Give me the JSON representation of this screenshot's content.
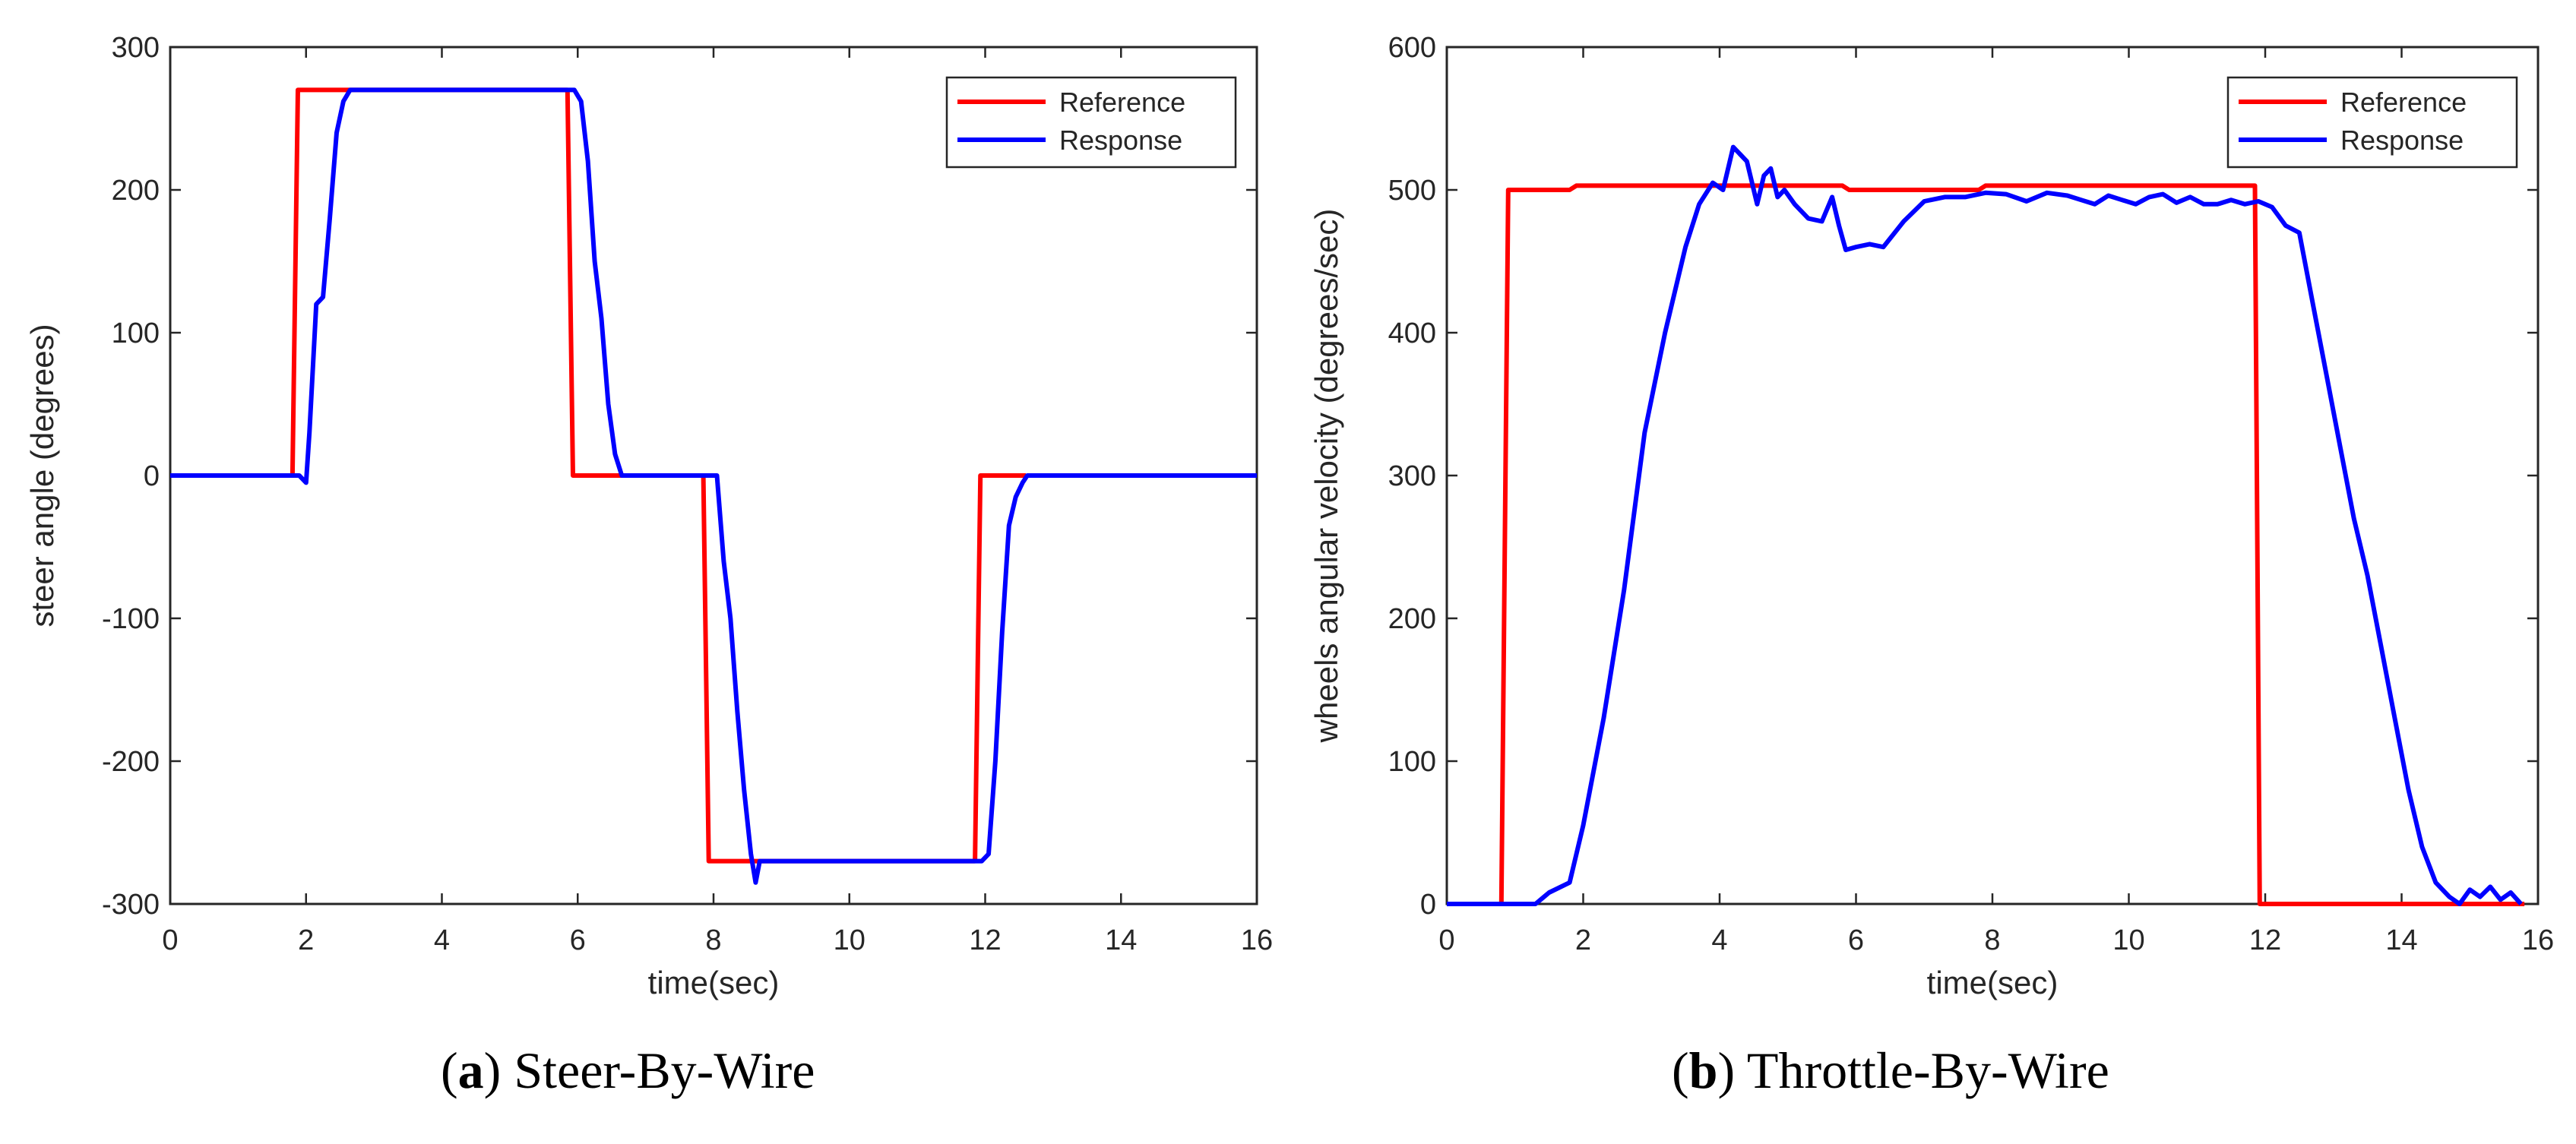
{
  "chart_data": [
    {
      "id": "a",
      "type": "line",
      "title": "",
      "xlabel": "time(sec)",
      "ylabel": "steer angle (degrees)",
      "xlim": [
        0,
        16
      ],
      "ylim": [
        -300,
        300
      ],
      "xticks": [
        0,
        2,
        4,
        6,
        8,
        10,
        12,
        14,
        16
      ],
      "yticks": [
        -300,
        -200,
        -100,
        0,
        100,
        200,
        300
      ],
      "legend_position": "top-right",
      "grid": false,
      "caption_letter": "a",
      "caption_text": "Steer-By-Wire",
      "series": [
        {
          "name": "Reference",
          "color": "#ff0000",
          "x": [
            0,
            1.8,
            1.88,
            5.85,
            5.93,
            7.85,
            7.93,
            11.85,
            11.93,
            12.6
          ],
          "y": [
            0,
            0,
            270,
            270,
            0,
            0,
            -270,
            -270,
            0,
            0
          ]
        },
        {
          "name": "Response",
          "color": "#0000ff",
          "x": [
            0,
            1.9,
            2.0,
            2.05,
            2.15,
            2.25,
            2.35,
            2.45,
            2.55,
            2.65,
            2.75,
            5.95,
            6.05,
            6.15,
            6.25,
            6.35,
            6.45,
            6.55,
            6.65,
            7.95,
            8.05,
            8.15,
            8.25,
            8.35,
            8.45,
            8.55,
            8.62,
            8.68,
            11.85,
            11.95,
            12.05,
            12.15,
            12.25,
            12.35,
            12.45,
            12.55,
            12.62,
            16
          ],
          "y": [
            0,
            0,
            -5,
            30,
            120,
            125,
            180,
            240,
            262,
            270,
            270,
            270,
            262,
            220,
            150,
            110,
            50,
            15,
            0,
            0,
            0,
            -60,
            -100,
            -165,
            -220,
            -265,
            -285,
            -270,
            -270,
            -270,
            -265,
            -200,
            -110,
            -35,
            -15,
            -5,
            0,
            0
          ]
        }
      ]
    },
    {
      "id": "b",
      "type": "line",
      "title": "",
      "xlabel": "time(sec)",
      "ylabel": "wheels angular velocity (degrees/sec)",
      "xlim": [
        0,
        16
      ],
      "ylim": [
        0,
        600
      ],
      "xticks": [
        0,
        2,
        4,
        6,
        8,
        10,
        12,
        14,
        16
      ],
      "yticks": [
        0,
        100,
        200,
        300,
        400,
        500,
        600
      ],
      "legend_position": "top-right",
      "grid": false,
      "caption_letter": "b",
      "caption_text": "Throttle-By-Wire",
      "series": [
        {
          "name": "Reference",
          "color": "#ff0000",
          "x": [
            0,
            0.8,
            0.9,
            1.8,
            1.9,
            5.8,
            5.9,
            7.8,
            7.9,
            11.85,
            11.92,
            15.8
          ],
          "y": [
            0,
            0,
            500,
            500,
            503,
            503,
            500,
            500,
            503,
            503,
            0,
            0
          ]
        },
        {
          "name": "Response",
          "color": "#0000ff",
          "x": [
            0,
            1.3,
            1.5,
            1.8,
            2.0,
            2.3,
            2.6,
            2.9,
            3.2,
            3.5,
            3.7,
            3.9,
            4.05,
            4.2,
            4.3,
            4.4,
            4.55,
            4.65,
            4.75,
            4.85,
            4.95,
            5.1,
            5.3,
            5.5,
            5.65,
            5.75,
            5.85,
            6.0,
            6.2,
            6.4,
            6.7,
            7.0,
            7.3,
            7.6,
            7.9,
            8.2,
            8.5,
            8.8,
            9.1,
            9.3,
            9.5,
            9.7,
            9.9,
            10.1,
            10.3,
            10.5,
            10.7,
            10.9,
            11.1,
            11.3,
            11.5,
            11.7,
            11.9,
            12.1,
            12.3,
            12.5,
            12.7,
            12.9,
            13.1,
            13.3,
            13.5,
            13.7,
            13.9,
            14.1,
            14.3,
            14.5,
            14.7,
            14.85,
            15.0,
            15.15,
            15.3,
            15.45,
            15.6,
            15.75
          ],
          "y": [
            0,
            0,
            8,
            15,
            55,
            130,
            220,
            330,
            400,
            460,
            490,
            505,
            500,
            530,
            525,
            520,
            490,
            510,
            515,
            495,
            500,
            490,
            480,
            478,
            495,
            475,
            458,
            460,
            462,
            460,
            478,
            492,
            495,
            495,
            498,
            497,
            492,
            498,
            496,
            493,
            490,
            496,
            493,
            490,
            495,
            497,
            491,
            495,
            490,
            490,
            493,
            490,
            492,
            488,
            475,
            470,
            420,
            370,
            320,
            270,
            230,
            180,
            130,
            80,
            40,
            15,
            5,
            0,
            10,
            5,
            12,
            3,
            8,
            0
          ]
        }
      ]
    }
  ]
}
